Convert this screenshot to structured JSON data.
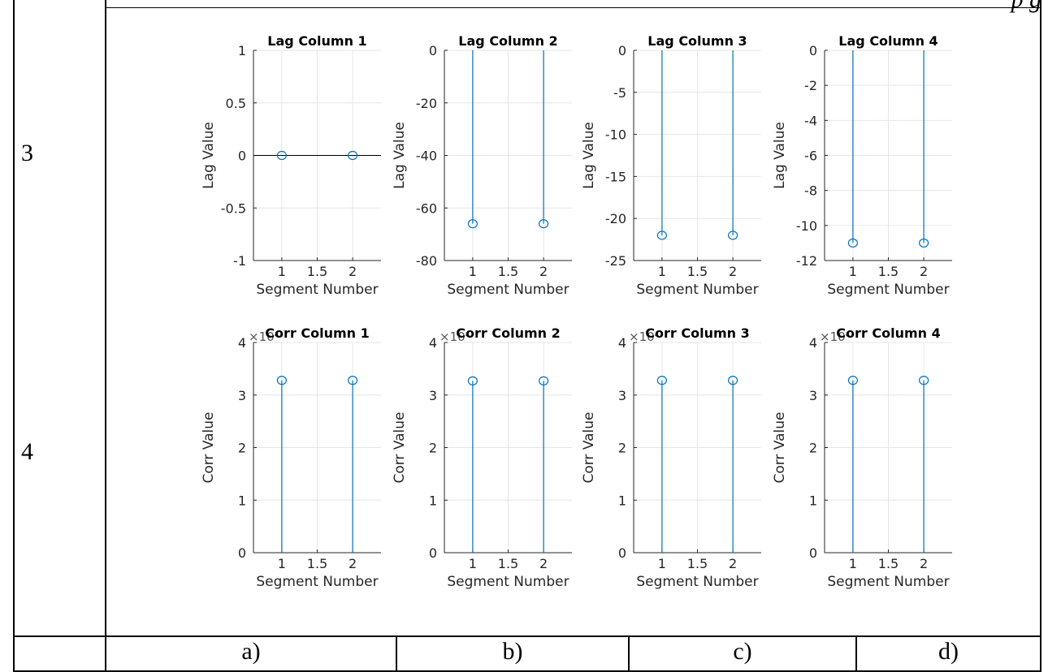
{
  "table": {
    "row_labels": [
      "3",
      "4"
    ],
    "column_captions": [
      "a)",
      "b)",
      "c)",
      "d)"
    ],
    "top_cut_text": "p                g"
  },
  "style": {
    "stem_color": "#0072bd",
    "grid_color": "#e6e6e6",
    "axis_color": "#262626"
  },
  "chart_data": [
    {
      "type": "stem",
      "title": "Lag Column 1",
      "xlabel": "Segment Number",
      "ylabel": "Lag Value",
      "x": [
        1,
        2
      ],
      "y": [
        0,
        0
      ],
      "xlim": [
        0.6,
        2.4
      ],
      "ylim": [
        -1,
        1
      ],
      "xticks": [
        1,
        1.5,
        2
      ],
      "xtick_labels": [
        "1",
        "1.5",
        "2"
      ],
      "yticks": [
        -1,
        -0.5,
        0,
        0.5,
        1
      ],
      "ytick_labels": [
        "-1",
        "-0.5",
        "0",
        "0.5",
        "1"
      ],
      "grid": true,
      "multiplier": ""
    },
    {
      "type": "stem",
      "title": "Lag Column 2",
      "xlabel": "Segment Number",
      "ylabel": "Lag Value",
      "x": [
        1,
        2
      ],
      "y": [
        -66,
        -66
      ],
      "xlim": [
        0.6,
        2.4
      ],
      "ylim": [
        -80,
        0
      ],
      "xticks": [
        1,
        1.5,
        2
      ],
      "xtick_labels": [
        "1",
        "1.5",
        "2"
      ],
      "yticks": [
        -80,
        -60,
        -40,
        -20,
        0
      ],
      "ytick_labels": [
        "-80",
        "-60",
        "-40",
        "-20",
        "0"
      ],
      "grid": true,
      "multiplier": ""
    },
    {
      "type": "stem",
      "title": "Lag Column 3",
      "xlabel": "Segment Number",
      "ylabel": "Lag Value",
      "x": [
        1,
        2
      ],
      "y": [
        -22,
        -22
      ],
      "xlim": [
        0.6,
        2.4
      ],
      "ylim": [
        -25,
        0
      ],
      "xticks": [
        1,
        1.5,
        2
      ],
      "xtick_labels": [
        "1",
        "1.5",
        "2"
      ],
      "yticks": [
        -25,
        -20,
        -15,
        -10,
        -5,
        0
      ],
      "ytick_labels": [
        "-25",
        "-20",
        "-15",
        "-10",
        "-5",
        "0"
      ],
      "grid": true,
      "multiplier": ""
    },
    {
      "type": "stem",
      "title": "Lag Column 4",
      "xlabel": "Segment Number",
      "ylabel": "Lag Value",
      "x": [
        1,
        2
      ],
      "y": [
        -11,
        -11
      ],
      "xlim": [
        0.6,
        2.4
      ],
      "ylim": [
        -12,
        0
      ],
      "xticks": [
        1,
        1.5,
        2
      ],
      "xtick_labels": [
        "1",
        "1.5",
        "2"
      ],
      "yticks": [
        -12,
        -10,
        -8,
        -6,
        -4,
        -2,
        0
      ],
      "ytick_labels": [
        "-12",
        "-10",
        "-8",
        "-6",
        "-4",
        "-2",
        "0"
      ],
      "grid": true,
      "multiplier": ""
    },
    {
      "type": "stem",
      "title": "Corr Column 1",
      "xlabel": "Segment Number",
      "ylabel": "Corr Value",
      "x": [
        1,
        2
      ],
      "y": [
        3.28,
        3.28
      ],
      "xlim": [
        0.6,
        2.4
      ],
      "ylim": [
        0,
        4
      ],
      "xticks": [
        1,
        1.5,
        2
      ],
      "xtick_labels": [
        "1",
        "1.5",
        "2"
      ],
      "yticks": [
        0,
        1,
        2,
        3,
        4
      ],
      "ytick_labels": [
        "0",
        "1",
        "2",
        "3",
        "4"
      ],
      "grid": true,
      "multiplier": "×10⁴"
    },
    {
      "type": "stem",
      "title": "Corr Column 2",
      "xlabel": "Segment Number",
      "ylabel": "Corr Value",
      "x": [
        1,
        2
      ],
      "y": [
        3.27,
        3.27
      ],
      "xlim": [
        0.6,
        2.4
      ],
      "ylim": [
        0,
        4
      ],
      "xticks": [
        1,
        1.5,
        2
      ],
      "xtick_labels": [
        "1",
        "1.5",
        "2"
      ],
      "yticks": [
        0,
        1,
        2,
        3,
        4
      ],
      "ytick_labels": [
        "0",
        "1",
        "2",
        "3",
        "4"
      ],
      "grid": true,
      "multiplier": "×10⁴"
    },
    {
      "type": "stem",
      "title": "Corr Column 3",
      "xlabel": "Segment Number",
      "ylabel": "Corr Value",
      "x": [
        1,
        2
      ],
      "y": [
        3.28,
        3.28
      ],
      "xlim": [
        0.6,
        2.4
      ],
      "ylim": [
        0,
        4
      ],
      "xticks": [
        1,
        1.5,
        2
      ],
      "xtick_labels": [
        "1",
        "1.5",
        "2"
      ],
      "yticks": [
        0,
        1,
        2,
        3,
        4
      ],
      "ytick_labels": [
        "0",
        "1",
        "2",
        "3",
        "4"
      ],
      "grid": true,
      "multiplier": "×10⁴"
    },
    {
      "type": "stem",
      "title": "Corr Column 4",
      "xlabel": "Segment Number",
      "ylabel": "Corr Value",
      "x": [
        1,
        2
      ],
      "y": [
        3.28,
        3.28
      ],
      "xlim": [
        0.6,
        2.4
      ],
      "ylim": [
        0,
        4
      ],
      "xticks": [
        1,
        1.5,
        2
      ],
      "xtick_labels": [
        "1",
        "1.5",
        "2"
      ],
      "yticks": [
        0,
        1,
        2,
        3,
        4
      ],
      "ytick_labels": [
        "0",
        "1",
        "2",
        "3",
        "4"
      ],
      "grid": true,
      "multiplier": "×10⁴"
    }
  ]
}
